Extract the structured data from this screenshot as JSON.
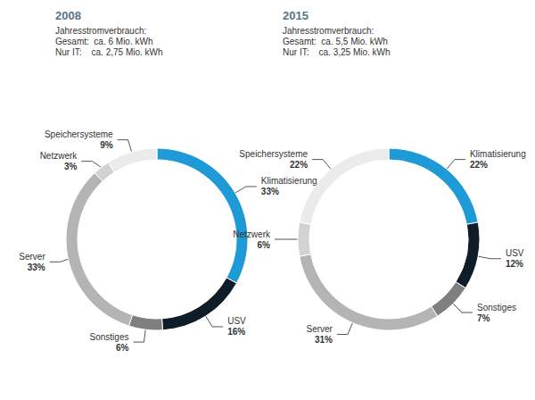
{
  "chart_data": [
    {
      "type": "pie",
      "title": "2008",
      "subtitle": [
        "Jahresstromverbrauch:",
        "Gesamt:  ca. 6 Mio. kWh",
        "Nur IT:    ca. 2,75 Mio. kWh"
      ],
      "categories": [
        "Klimatisierung",
        "USV",
        "Sonstiges",
        "Server",
        "Netzwerk",
        "Speichersysteme"
      ],
      "values": [
        33,
        16,
        6,
        33,
        3,
        9
      ],
      "value_labels": [
        "33%",
        "16%",
        "6%",
        "33%",
        "3%",
        "9%"
      ],
      "colors": [
        "#1e9ad6",
        "#0f1d28",
        "#7f7f7f",
        "#b4b4b4",
        "#d2d2d2",
        "#ebebeb"
      ],
      "data_labels": true
    },
    {
      "type": "pie",
      "title": "2015",
      "subtitle": [
        "Jahresstromverbrauch:",
        "Gesamt:  ca. 5,5 Mio. kWh",
        "Nur IT:    ca. 3,25 Mio. kWh"
      ],
      "categories": [
        "Klimatisierung",
        "USV",
        "Sonstiges",
        "Server",
        "Netzwerk",
        "Speichersysteme"
      ],
      "values": [
        22,
        12,
        7,
        31,
        6,
        22
      ],
      "value_labels": [
        "22%",
        "12%",
        "7%",
        "31%",
        "6%",
        "22%"
      ],
      "colors": [
        "#1e9ad6",
        "#0f1d28",
        "#7f7f7f",
        "#b4b4b4",
        "#d2d2d2",
        "#ebebeb"
      ],
      "data_labels": true
    }
  ]
}
